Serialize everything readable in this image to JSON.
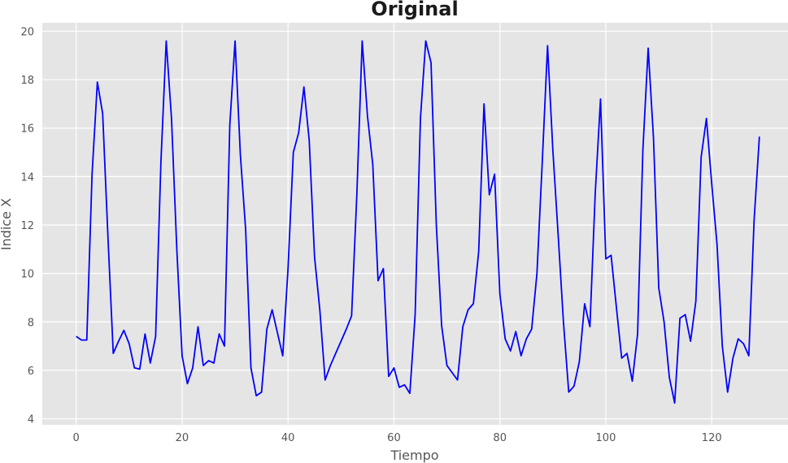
{
  "chart_data": {
    "type": "line",
    "title": "Original",
    "xlabel": "Tiempo",
    "ylabel": "Indice X",
    "xlim": [
      -6.4,
      134.4
    ],
    "ylim": [
      3.75,
      20.35
    ],
    "x_ticks": [
      0,
      20,
      40,
      60,
      80,
      100,
      120
    ],
    "y_ticks": [
      4,
      6,
      8,
      10,
      12,
      14,
      16,
      18,
      20
    ],
    "grid": true,
    "background": "#e5e5e5",
    "line_color": "#0000ff",
    "series": [
      {
        "values": [
          7.4,
          7.25,
          7.25,
          14.1,
          17.9,
          16.6,
          11.5,
          6.7,
          7.2,
          7.65,
          7.1,
          6.1,
          6.05,
          7.5,
          6.3,
          7.4,
          14.6,
          19.6,
          16.4,
          11.0,
          6.6,
          5.45,
          6.1,
          7.8,
          6.2,
          6.4,
          6.3,
          7.5,
          7.0,
          16.1,
          19.6,
          14.9,
          11.8,
          6.1,
          4.95,
          5.1,
          7.7,
          8.5,
          7.55,
          6.6,
          10.2,
          15.0,
          15.8,
          17.7,
          15.5,
          10.7,
          8.5,
          5.6,
          6.2,
          6.7,
          7.2,
          7.7,
          8.25,
          13.3,
          19.6,
          16.5,
          14.5,
          9.7,
          10.2,
          5.75,
          6.1,
          5.3,
          5.4,
          5.05,
          8.3,
          16.4,
          19.6,
          18.7,
          12.0,
          7.85,
          6.2,
          5.9,
          5.6,
          7.8,
          8.5,
          8.75,
          10.9,
          17.0,
          13.25,
          14.1,
          9.15,
          7.3,
          6.8,
          7.6,
          6.6,
          7.3,
          7.7,
          10.0,
          14.6,
          19.4,
          15.1,
          11.6,
          8.0,
          5.1,
          5.35,
          6.35,
          8.75,
          7.8,
          13.3,
          17.2,
          10.6,
          10.75,
          8.6,
          6.5,
          6.7,
          5.55,
          7.5,
          15.1,
          19.3,
          15.6,
          9.4,
          8.0,
          5.7,
          4.65,
          8.15,
          8.3,
          7.2,
          8.85,
          14.8,
          16.4,
          13.7,
          11.2,
          7.0,
          5.1,
          6.5,
          7.3,
          7.1,
          6.6,
          12.2,
          15.65
        ]
      }
    ]
  }
}
